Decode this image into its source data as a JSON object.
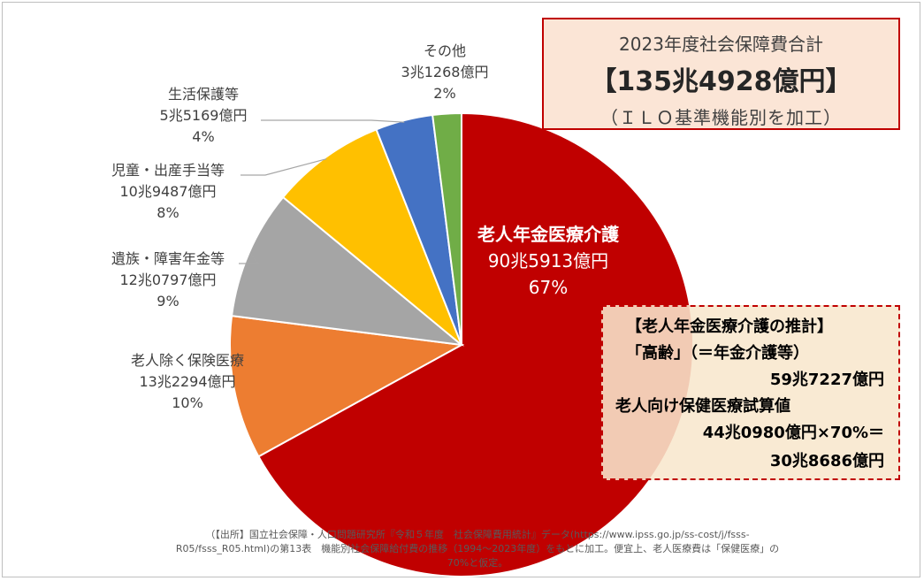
{
  "chart_data": {
    "type": "pie",
    "slices": [
      {
        "label": "老人年金医療介護",
        "amount": "90兆5913億円",
        "percent": "67%",
        "value": 67,
        "color": "#c00000"
      },
      {
        "label": "老人除く保険医療",
        "amount": "13兆2294億円",
        "percent": "10%",
        "value": 10,
        "color": "#ed7d31"
      },
      {
        "label": "遺族・障害年金等",
        "amount": "12兆0797億円",
        "percent": "9%",
        "value": 9,
        "color": "#a5a5a5"
      },
      {
        "label": "児童・出産手当等",
        "amount": "10兆9487億円",
        "percent": "8%",
        "value": 8,
        "color": "#ffc000"
      },
      {
        "label": "生活保護等",
        "amount": "5兆5169億円",
        "percent": "4%",
        "value": 4,
        "color": "#4472c4"
      },
      {
        "label": "その他",
        "amount": "3兆1268億円",
        "percent": "2%",
        "value": 2,
        "color": "#70ad47"
      }
    ]
  },
  "total_box": {
    "line1": "2023年度社会保障費合計",
    "line2": "【135兆4928億円】",
    "line3": "（ＩＬＯ基準機能別を加工）"
  },
  "estimate_box": {
    "title": "【老人年金医療介護の推計】",
    "line1": "「高齢」（＝年金介護等）",
    "line2": "59兆7227億円",
    "line3": "老人向け保健医療試算値",
    "line4": "44兆0980億円×70%＝",
    "line5": "30兆8686億円"
  },
  "source": {
    "line1": "（【出所】国立社会保障・人口問題研究所『令和５年度　社会保障費用統計』データ(https://www.ipss.go.jp/ss-cost/j/fsss-",
    "line2": "R05/fsss_R05.html)の第13表　機能別社会保障給付費の推移（1994～2023年度）をもとに加工。便宜上、老人医療費は「保健医療」の",
    "line3": "70%と仮定。"
  }
}
